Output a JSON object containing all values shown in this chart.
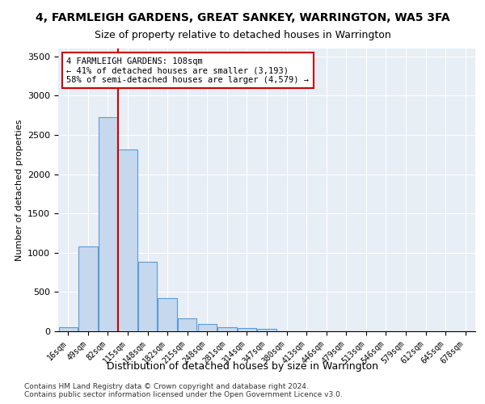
{
  "title": "4, FARMLEIGH GARDENS, GREAT SANKEY, WARRINGTON, WA5 3FA",
  "subtitle": "Size of property relative to detached houses in Warrington",
  "xlabel": "Distribution of detached houses by size in Warrington",
  "ylabel": "Number of detached properties",
  "bin_labels": [
    "16sqm",
    "49sqm",
    "82sqm",
    "115sqm",
    "148sqm",
    "182sqm",
    "215sqm",
    "248sqm",
    "281sqm",
    "314sqm",
    "347sqm",
    "380sqm",
    "413sqm",
    "446sqm",
    "479sqm",
    "513sqm",
    "546sqm",
    "579sqm",
    "612sqm",
    "645sqm",
    "678sqm"
  ],
  "bar_values": [
    50,
    1080,
    2730,
    2310,
    880,
    420,
    160,
    90,
    55,
    45,
    30,
    5,
    0,
    0,
    0,
    0,
    0,
    0,
    0,
    0,
    0
  ],
  "bar_color": "#c5d8ed",
  "bar_edge_color": "#5b9bd5",
  "vline_bin_index": 2,
  "vline_color": "#cc0000",
  "annotation_text": "4 FARMLEIGH GARDENS: 108sqm\n← 41% of detached houses are smaller (3,193)\n58% of semi-detached houses are larger (4,579) →",
  "annotation_box_color": "#ffffff",
  "annotation_box_edge": "#cc0000",
  "ylim": [
    0,
    3600
  ],
  "yticks": [
    0,
    500,
    1000,
    1500,
    2000,
    2500,
    3000,
    3500
  ],
  "background_color": "#e8eef5",
  "footer1": "Contains HM Land Registry data © Crown copyright and database right 2024.",
  "footer2": "Contains public sector information licensed under the Open Government Licence v3.0."
}
